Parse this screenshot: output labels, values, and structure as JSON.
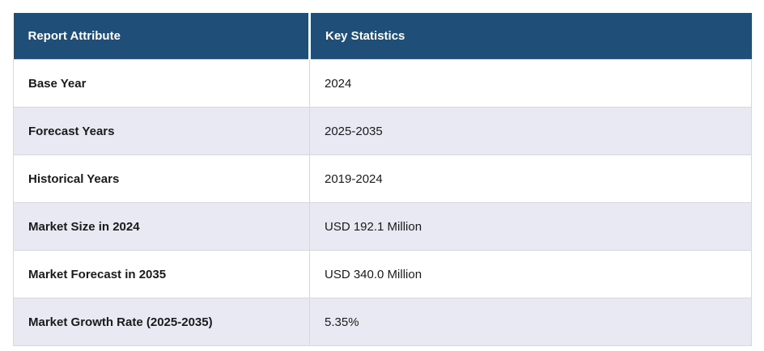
{
  "chart_data": {
    "type": "table",
    "title": "Report Attribute / Key Statistics summary table",
    "columns": [
      "Report Attribute",
      "Key Statistics"
    ],
    "rows": [
      [
        "Base Year",
        "2024"
      ],
      [
        "Forecast Years",
        "2025-2035"
      ],
      [
        "Historical Years",
        "2019-2024"
      ],
      [
        "Market Size in 2024",
        "USD 192.1 Million"
      ],
      [
        "Market Forecast in 2035",
        "USD 340.0 Million"
      ],
      [
        "Market Growth Rate (2025-2035)",
        "5.35%"
      ]
    ],
    "layout_hints": {
      "header_style": "dark-blue with white bold text",
      "row_striping": "white / light-lavender alternating starting with white",
      "grid": "thin light-gray cell borders"
    }
  },
  "colors": {
    "header_bg": "#1f4e79",
    "header_text": "#ffffff",
    "row_bg": "#ffffff",
    "row_alt_bg": "#e8e9f3",
    "border": "#d8d8dc",
    "body_text": "#1a1a1a"
  }
}
